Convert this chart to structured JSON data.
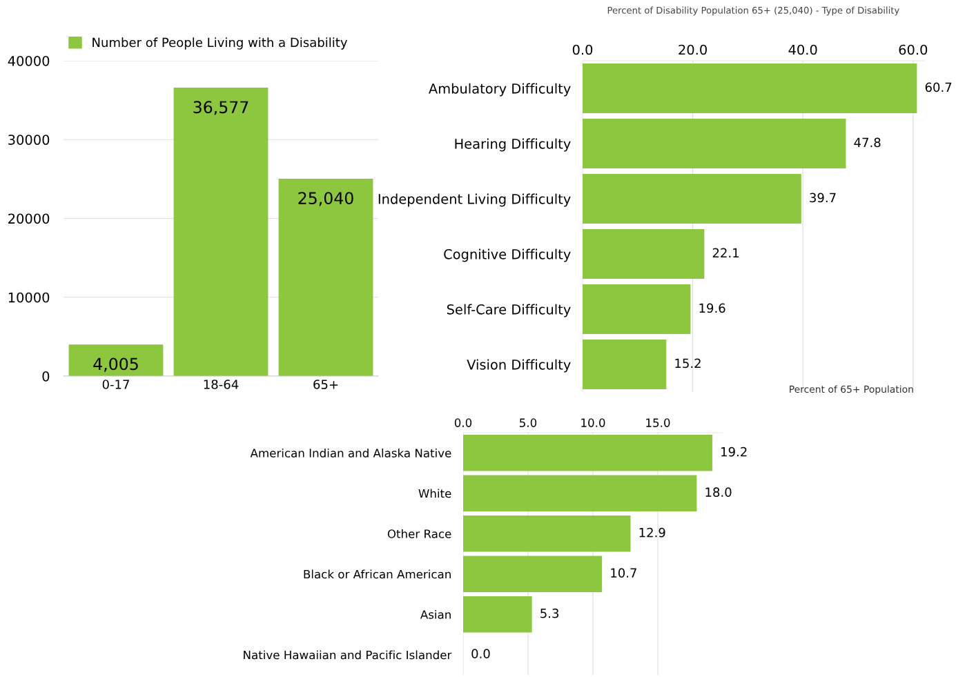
{
  "chart_data": [
    {
      "type": "bar",
      "categories": [
        "0-17",
        "18-64",
        "65+"
      ],
      "series": [
        {
          "name": "Number of People Living with a Disability",
          "color": "#8dc63f",
          "values": [
            4005,
            36577,
            25040
          ],
          "value_labels": [
            "4,005",
            "36,577",
            "25,040"
          ]
        }
      ],
      "ylim": [
        0,
        40000
      ],
      "yticks": [
        0,
        10000,
        20000,
        30000,
        40000
      ],
      "grid": "y",
      "legend": "top"
    },
    {
      "type": "bar",
      "orientation": "horizontal",
      "title": "Percent of Disability Population 65+ (25,040) - Type of Disability",
      "xlabel": "Percent of 65+ Population",
      "categories": [
        "Ambulatory Difficulty",
        "Hearing Difficulty",
        "Independent Living Difficulty",
        "Cognitive Difficulty",
        "Self-Care Difficulty",
        "Vision Difficulty"
      ],
      "values": [
        60.7,
        47.8,
        39.7,
        22.1,
        19.6,
        15.2
      ],
      "value_labels": [
        "60.7",
        "47.8",
        "39.7",
        "22.1",
        "19.6",
        "15.2"
      ],
      "color": "#8dc63f",
      "xlim": [
        0,
        62
      ],
      "xticks": [
        {
          "value": 0,
          "label": "0.0"
        },
        {
          "value": 20,
          "label": "20.0"
        },
        {
          "value": 40,
          "label": "40.0"
        },
        {
          "value": 60,
          "label": "60.0"
        }
      ],
      "grid": "x"
    },
    {
      "type": "bar",
      "orientation": "horizontal",
      "categories": [
        "American Indian and Alaska Native",
        "White",
        "Other Race",
        "Black or African American",
        "Asian",
        "Native Hawaiian and Pacific Islander"
      ],
      "values": [
        19.2,
        18.0,
        12.9,
        10.7,
        5.3,
        0.0
      ],
      "value_labels": [
        "19.2",
        "18.0",
        "12.9",
        "10.7",
        "5.3",
        "0.0"
      ],
      "color": "#8dc63f",
      "xlim": [
        0,
        20
      ],
      "xticks": [
        {
          "value": 0,
          "label": "0.0"
        },
        {
          "value": 5,
          "label": "5.0"
        },
        {
          "value": 10,
          "label": "10.0"
        },
        {
          "value": 15,
          "label": "15.0"
        }
      ],
      "grid": "x"
    }
  ]
}
